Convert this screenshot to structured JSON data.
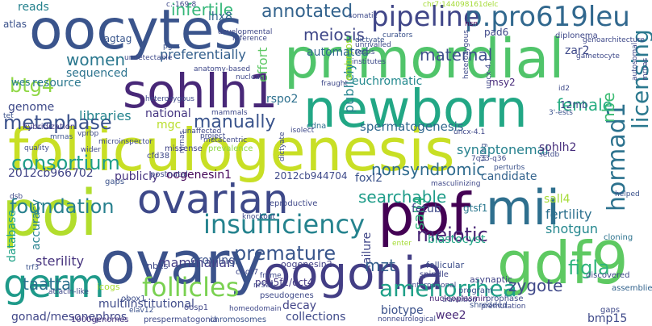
{
  "colors": {
    "background": "#ffffff"
  },
  "words": [
    {
      "text": "folliculogenesis",
      "color": "#c8df25"
    },
    {
      "text": "primordial",
      "color": "#50c46a"
    },
    {
      "text": "oocytes",
      "color": "#3a548c"
    },
    {
      "text": "newborn",
      "color": "#22a785"
    },
    {
      "text": "pof",
      "color": "#440154"
    },
    {
      "text": "mii",
      "color": "#2e6f8e"
    },
    {
      "text": "poi",
      "color": "#b2dd2d"
    },
    {
      "text": "ovary",
      "color": "#3b528b"
    },
    {
      "text": "oogonia",
      "color": "#433e85"
    },
    {
      "text": "gdf9",
      "color": "#5ec962"
    },
    {
      "text": "ovarian",
      "color": "#3e4989"
    },
    {
      "text": "sohlh1",
      "color": "#482878"
    },
    {
      "text": "germ",
      "color": "#1f9a8a"
    },
    {
      "text": "insufficiency",
      "color": "#25838e"
    },
    {
      "text": "pipeline",
      "color": "#404688"
    },
    {
      "text": "p.pro619leu",
      "color": "#31688e"
    },
    {
      "text": "follicles",
      "color": "#7ad151"
    },
    {
      "text": "amenorrhea",
      "color": "#1fa088"
    },
    {
      "text": "hormad1",
      "color": "#2c728e"
    },
    {
      "text": "licensing",
      "color": "#2a788e"
    },
    {
      "text": "btg4",
      "color": "#8fd744"
    },
    {
      "text": "metaphase",
      "color": "#3b528b"
    },
    {
      "text": "consortium",
      "color": "#1f9e89"
    },
    {
      "text": "foundation",
      "color": "#27808e"
    },
    {
      "text": "manually",
      "color": "#3a548c"
    },
    {
      "text": "meiotic",
      "color": "#482475"
    },
    {
      "text": "premature",
      "color": "#39568c"
    },
    {
      "text": "mzt",
      "color": "#355f8d"
    },
    {
      "text": "figla",
      "color": "#2fb47c"
    },
    {
      "text": "taatta",
      "color": "#2c718e"
    },
    {
      "text": "maternal",
      "color": "#3d4e8a"
    },
    {
      "text": "annotated",
      "color": "#33638d"
    },
    {
      "text": "infertile",
      "color": "#35b779"
    },
    {
      "text": "meiosis",
      "color": "#3f4788"
    },
    {
      "text": "women",
      "color": "#2a778e"
    },
    {
      "text": "female",
      "color": "#26ad81"
    },
    {
      "text": "nbe",
      "color": "#3dbc74"
    },
    {
      "text": "nonsyndromic",
      "color": "#2f6b8e"
    },
    {
      "text": "searchable",
      "color": "#1e9c89"
    },
    {
      "text": "sterility",
      "color": "#46337e"
    },
    {
      "text": "mammalian",
      "color": "#433e85"
    },
    {
      "text": "blastocyst",
      "color": "#21a685"
    },
    {
      "text": "zygote",
      "color": "#3f4889"
    },
    {
      "text": "decay",
      "color": "#414487"
    },
    {
      "text": "collections",
      "color": "#3e4989"
    },
    {
      "text": "fertility",
      "color": "#2d708e"
    },
    {
      "text": "shotgun",
      "color": "#24878e"
    },
    {
      "text": "spermatogenesis",
      "color": "#31688e"
    },
    {
      "text": "synaptonemal",
      "color": "#26818e"
    },
    {
      "text": "sohlh2",
      "color": "#472e7c"
    },
    {
      "text": "euchromatic",
      "color": "#23898e"
    },
    {
      "text": "failure",
      "color": "#404688"
    },
    {
      "text": "sequenced",
      "color": "#2c738e"
    },
    {
      "text": "preferentially",
      "color": "#34608d"
    },
    {
      "text": "resource",
      "color": "#2a788e"
    },
    {
      "text": "libraries",
      "color": "#25848e"
    },
    {
      "text": "genome",
      "color": "#3e4a89"
    },
    {
      "text": "wes",
      "color": "#287c8e"
    },
    {
      "text": "national",
      "color": "#453581"
    },
    {
      "text": "mgc",
      "color": "#b8de29"
    },
    {
      "text": "rspo2",
      "color": "#2d708e"
    },
    {
      "text": "effort",
      "color": "#5cc863"
    },
    {
      "text": "automated",
      "color": "#31688e"
    },
    {
      "text": "lhx8",
      "color": "#32658e"
    },
    {
      "text": "reads",
      "color": "#26828e"
    },
    {
      "text": "zar2",
      "color": "#3e4989"
    },
    {
      "text": "astl",
      "color": "#25848e"
    },
    {
      "text": "2012cb966702",
      "color": "#414487"
    },
    {
      "text": "publicly",
      "color": "#46337e"
    },
    {
      "text": "oogenesin1",
      "color": "#450559"
    },
    {
      "text": "foxl2",
      "color": "#3b528b"
    },
    {
      "text": "fetub",
      "color": "#3e4989"
    },
    {
      "text": "candidate",
      "color": "#33638d"
    },
    {
      "text": "kit-l",
      "color": "#2fb47c"
    },
    {
      "text": "sall4",
      "color": "#a5db36"
    },
    {
      "text": "ontology",
      "color": "#26828e"
    },
    {
      "text": "accuracy",
      "color": "#1fa187"
    },
    {
      "text": "database",
      "color": "#3b528b"
    },
    {
      "text": "growing",
      "color": "#3f4788"
    },
    {
      "text": "nbes",
      "color": "#3e4989"
    },
    {
      "text": "bmp15",
      "color": "#3b528b"
    },
    {
      "text": "biotype",
      "color": "#482878"
    },
    {
      "text": "wee2",
      "color": "#3e4a89"
    },
    {
      "text": "multiinstitutional",
      "color": "#404688"
    },
    {
      "text": "gonad/mesonephros",
      "color": "#424086"
    },
    {
      "text": "oogenesin2",
      "color": "#443983"
    },
    {
      "text": "pou5f1/oct4",
      "color": "#2a778e"
    },
    {
      "text": "gtsf1",
      "color": "#3e4989"
    },
    {
      "text": "2012cb944704",
      "color": "#3f4889"
    },
    {
      "text": "pad6",
      "color": "#472a7a"
    },
    {
      "text": "msy2",
      "color": "#3e4989"
    },
    {
      "text": "12mb",
      "color": "#3b528b"
    },
    {
      "text": "atlas",
      "color": "#39568c"
    },
    {
      "text": "tagtag",
      "color": "#46307e"
    },
    {
      "text": "ddx6-deficient",
      "color": "#3b528b"
    },
    {
      "text": "chromosomes",
      "color": "#3e4989"
    },
    {
      "text": "prespermatogonia",
      "color": "#463480"
    },
    {
      "text": "1000genomes",
      "color": "#aadc32"
    },
    {
      "text": "icogs",
      "color": "#404688"
    },
    {
      "text": "embryos",
      "color": "#3d4e8a"
    },
    {
      "text": "oosp1",
      "color": "#3f4889"
    },
    {
      "text": "obox1",
      "color": "#3e4989"
    },
    {
      "text": "cnot7",
      "color": "#482374"
    },
    {
      "text": "pseudogenes",
      "color": "#414487"
    },
    {
      "text": "nucleoplasmin",
      "color": "#3b528b"
    },
    {
      "text": "asynaptic",
      "color": "#3f4889"
    },
    {
      "text": "shredded",
      "color": "#33638d"
    },
    {
      "text": "discovered",
      "color": "#3e4989"
    },
    {
      "text": "assemblies",
      "color": "#2c728e"
    },
    {
      "text": "gaps",
      "color": "#3b528b"
    },
    {
      "text": "cloning",
      "color": "#3d4e8a"
    },
    {
      "text": "program",
      "color": "#3e4989"
    },
    {
      "text": "follicular",
      "color": "#404688"
    },
    {
      "text": "prophase",
      "color": "#2e6f8e"
    },
    {
      "text": "spindle",
      "color": "#443b84"
    },
    {
      "text": "cdna",
      "color": "#3e4989"
    },
    {
      "text": "hybridization",
      "color": "#3b528b"
    },
    {
      "text": "quality",
      "color": "#8fd744"
    },
    {
      "text": "tet",
      "color": "#414487"
    },
    {
      "text": "prevalence",
      "color": "#3f4889"
    },
    {
      "text": "missense",
      "color": "#3e4989"
    },
    {
      "text": "cfd38",
      "color": "#3b528b"
    },
    {
      "text": "postnatal",
      "color": "#3f4889"
    },
    {
      "text": "gaps",
      "color": "#3b528b"
    },
    {
      "text": "reproductive",
      "color": "#3e4989"
    },
    {
      "text": "polyspermy",
      "color": "#3b528b"
    },
    {
      "text": "7q33-q36",
      "color": "#3e4989"
    },
    {
      "text": "perturbs",
      "color": "#3b528b"
    },
    {
      "text": "setdb",
      "color": "#440154"
    },
    {
      "text": "helped",
      "color": "#3f4889"
    },
    {
      "text": "nsn",
      "color": "#3e4989"
    },
    {
      "text": "diplonema",
      "color": "#3f4889"
    },
    {
      "text": "gametocyte",
      "color": "#3b528b"
    },
    {
      "text": "reference",
      "color": "#3e4989"
    },
    {
      "text": "curators",
      "color": "#3f4889"
    },
    {
      "text": "unrivalled",
      "color": "#3e4989"
    },
    {
      "text": "testis",
      "color": "#3b528b"
    },
    {
      "text": "institutes",
      "color": "#3e4989"
    },
    {
      "text": "pgcs",
      "color": "#3f4889"
    },
    {
      "text": "undetectable",
      "color": "#3e4989"
    },
    {
      "text": "anatomy-based",
      "color": "#3f4889"
    },
    {
      "text": "mammals",
      "color": "#3e4989"
    },
    {
      "text": "unaffected",
      "color": "#a5db36"
    },
    {
      "text": "knockout",
      "color": "#3f4889"
    },
    {
      "text": "enter",
      "color": "#3e4989"
    },
    {
      "text": "fetuin",
      "color": "#3f4889"
    },
    {
      "text": "nr5a1",
      "color": "#3e4989"
    },
    {
      "text": "homeodomain",
      "color": "#3b528b"
    },
    {
      "text": "frame",
      "color": "#3e4989"
    },
    {
      "text": "trf3",
      "color": "#3f4889"
    },
    {
      "text": "vprbp",
      "color": "#3e4989"
    },
    {
      "text": "wider",
      "color": "#3b528b"
    },
    {
      "text": "dsb",
      "color": "#3e4989"
    },
    {
      "text": "elav12",
      "color": "#a5db36"
    },
    {
      "text": "c.-169-8",
      "color": "#3e4989"
    },
    {
      "text": "chr7:144098161delc",
      "color": "#3b528b"
    },
    {
      "text": "id2",
      "color": "#3f4889"
    },
    {
      "text": "3'-ests",
      "color": "#3e4989"
    },
    {
      "text": "uncx-4.1",
      "color": "#3b528b"
    },
    {
      "text": "tiling",
      "color": "#3e4989"
    },
    {
      "text": "heterozygous",
      "color": "#3f4889"
    },
    {
      "text": "stage",
      "color": "#3e4989"
    },
    {
      "text": "perivitelline",
      "color": "#3b528b"
    },
    {
      "text": "ovulation",
      "color": "#3e4989"
    },
    {
      "text": "components",
      "color": "#3f4889"
    },
    {
      "text": "mrnas",
      "color": "#3e4989"
    },
    {
      "text": "nonneurological",
      "color": "#3e4989"
    },
    {
      "text": "transition",
      "color": "#3f4889"
    },
    {
      "text": "premutation",
      "color": "#3e4989"
    },
    {
      "text": "international",
      "color": "#3b528b"
    },
    {
      "text": "developmental",
      "color": "#3f4889"
    },
    {
      "text": "somatic",
      "color": "#3e4989"
    },
    {
      "text": "dictyate",
      "color": "#3f4889"
    },
    {
      "text": "masculinizing",
      "color": "#3e4989"
    },
    {
      "text": "project",
      "color": "#3b528b"
    },
    {
      "text": "metacentric",
      "color": "#3e4989"
    },
    {
      "text": "autosomal",
      "color": "#3f4889"
    },
    {
      "text": "isolect",
      "color": "#3e4989"
    },
    {
      "text": "genoarchitecture",
      "color": "#3f4889"
    },
    {
      "text": "orf",
      "color": "#3e4989"
    },
    {
      "text": "fraught",
      "color": "#3b528b"
    },
    {
      "text": "mrnas",
      "color": "#3e4989"
    },
    {
      "text": "microinspector",
      "color": "#3f4889"
    },
    {
      "text": "mesenchymal",
      "color": "#3e4989"
    },
    {
      "text": "attacin-like",
      "color": "#3f4889"
    },
    {
      "text": "nuclear",
      "color": "#3e4989"
    }
  ]
}
